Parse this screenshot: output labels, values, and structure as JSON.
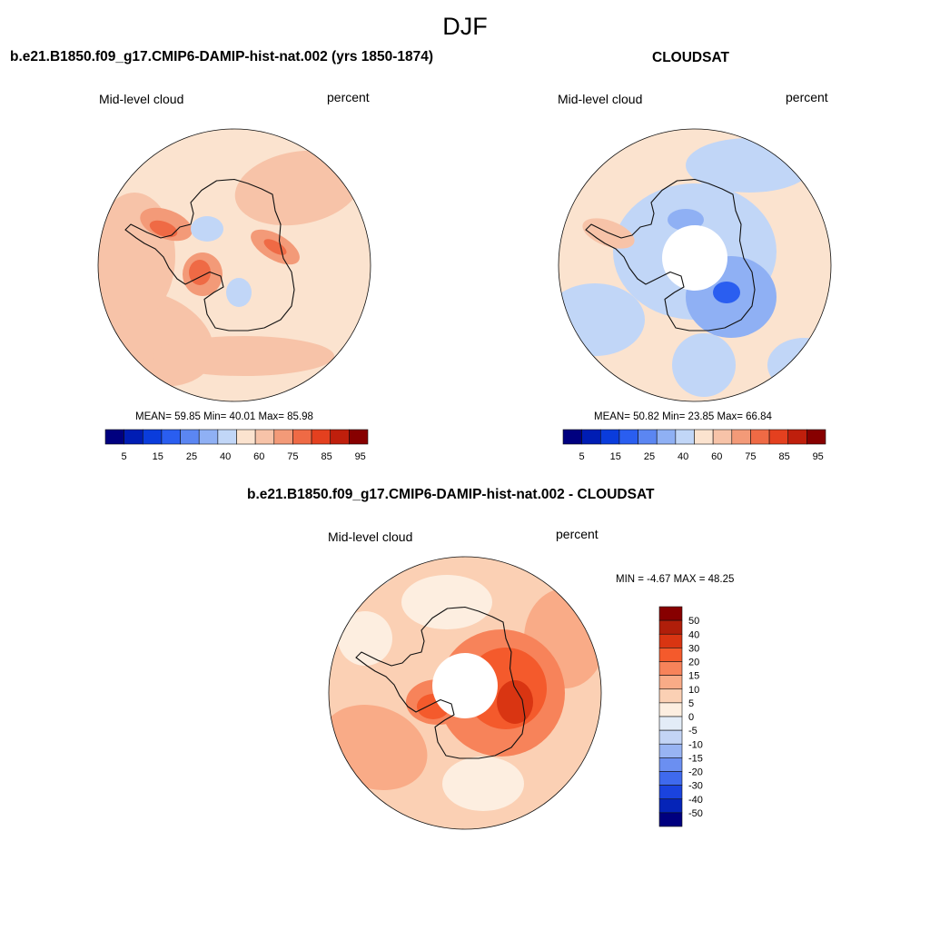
{
  "figure": {
    "season": "DJF"
  },
  "panels": [
    {
      "id": "model",
      "title": "b.e21.B1850.f09_g17.CMIP6-DAMIP-hist-nat.002 (yrs 1850-1874)",
      "variable": "Mid-level cloud",
      "units": "percent",
      "stats_text": "MEAN=  59.85  Min=  40.01  Max=  85.98"
    },
    {
      "id": "obs",
      "title": "CLOUDSAT",
      "variable": "Mid-level cloud",
      "units": "percent",
      "stats_text": "MEAN=  50.82  Min=  23.85  Max=  66.84"
    },
    {
      "id": "diff",
      "title": "b.e21.B1850.f09_g17.CMIP6-DAMIP-hist-nat.002 - CLOUDSAT",
      "variable": "Mid-level cloud",
      "units": "percent",
      "stats_text": "MIN =  -4.67 MAX =  48.25"
    }
  ],
  "chart_data": [
    {
      "type": "heatmap",
      "projection": "south-polar-stereographic",
      "title": "b.e21.B1850.f09_g17.CMIP6-DAMIP-hist-nat.002 (yrs 1850-1874)",
      "mean": 59.85,
      "min": 40.01,
      "max": 85.98,
      "colorbar": {
        "orientation": "horizontal",
        "tick_labels": [
          "5",
          "15",
          "25",
          "40",
          "60",
          "75",
          "85",
          "95"
        ],
        "colors": [
          "#00007f",
          "#001db4",
          "#0a3cdc",
          "#2a5ef0",
          "#5b86f2",
          "#8fb0f4",
          "#c1d6f7",
          "#fbe3cf",
          "#f7c3a8",
          "#f39a78",
          "#ef6a45",
          "#e4401f",
          "#bf1f0c",
          "#870000"
        ]
      }
    },
    {
      "type": "heatmap",
      "projection": "south-polar-stereographic",
      "title": "CLOUDSAT",
      "mean": 50.82,
      "min": 23.85,
      "max": 66.84,
      "missing_data_region": "pole",
      "colorbar": {
        "orientation": "horizontal",
        "tick_labels": [
          "5",
          "15",
          "25",
          "40",
          "60",
          "75",
          "85",
          "95"
        ],
        "colors": [
          "#00007f",
          "#001db4",
          "#0a3cdc",
          "#2a5ef0",
          "#5b86f2",
          "#8fb0f4",
          "#c1d6f7",
          "#fbe3cf",
          "#f7c3a8",
          "#f39a78",
          "#ef6a45",
          "#e4401f",
          "#bf1f0c",
          "#870000"
        ]
      }
    },
    {
      "type": "heatmap",
      "projection": "south-polar-stereographic",
      "title": "b.e21.B1850.f09_g17.CMIP6-DAMIP-hist-nat.002 - CLOUDSAT",
      "min": -4.67,
      "max": 48.25,
      "missing_data_region": "pole",
      "colorbar": {
        "orientation": "vertical",
        "tick_labels": [
          "50",
          "40",
          "30",
          "20",
          "15",
          "10",
          "5",
          "0",
          "-5",
          "-10",
          "-15",
          "-20",
          "-30",
          "-40",
          "-50"
        ],
        "colors": [
          "#870000",
          "#b01e0a",
          "#d93512",
          "#f45a2c",
          "#f7835a",
          "#f9ab87",
          "#fbd0b4",
          "#fdeee0",
          "#e3ecf7",
          "#c3d4f5",
          "#98b4f3",
          "#6b8ff1",
          "#3f6aee",
          "#1a43de",
          "#0524b8",
          "#00007f"
        ]
      }
    }
  ]
}
